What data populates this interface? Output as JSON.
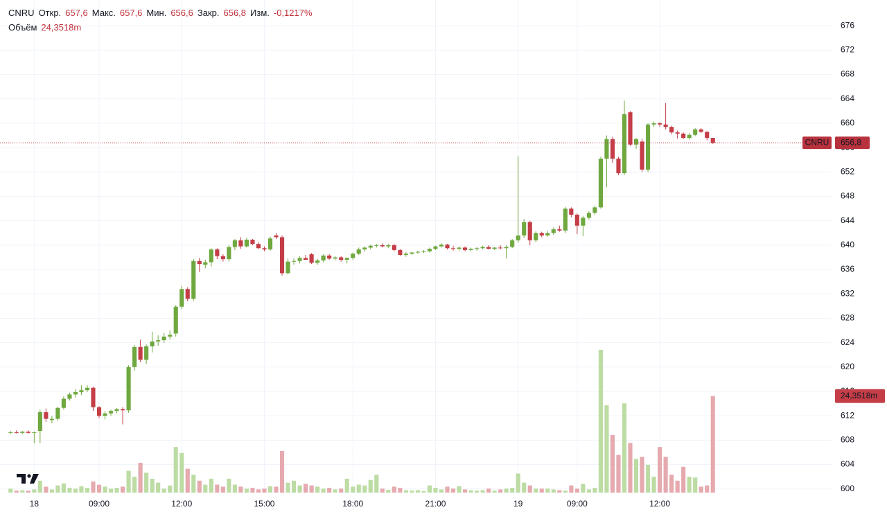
{
  "chart_data": {
    "type": "candlestick",
    "symbol": "CNRU",
    "header_items": [
      {
        "label": "Откр.",
        "value": "657,6"
      },
      {
        "label": "Макс.",
        "value": "657,6"
      },
      {
        "label": "Мин.",
        "value": "656,6"
      },
      {
        "label": "Закр.",
        "value": "656,8"
      },
      {
        "label": "Изм.",
        "value": "-0,1217%"
      }
    ],
    "volume_header": {
      "label": "Объём",
      "value": "24,3518m"
    },
    "last_price": {
      "value": 656.8,
      "label": "656,8"
    },
    "last_volume": {
      "value": 24.3518,
      "label": "24,3518m"
    },
    "categories": [
      null,
      null,
      null,
      null,
      "18",
      null,
      null,
      null,
      null,
      null,
      null,
      null,
      null,
      null,
      null,
      "09:00",
      null,
      null,
      null,
      null,
      null,
      null,
      null,
      null,
      null,
      null,
      null,
      null,
      null,
      "12:00",
      null,
      null,
      null,
      null,
      null,
      null,
      null,
      null,
      null,
      null,
      null,
      null,
      null,
      "15:00",
      null,
      null,
      null,
      null,
      null,
      null,
      null,
      null,
      null,
      null,
      null,
      null,
      null,
      null,
      "18:00",
      null,
      null,
      null,
      null,
      null,
      null,
      null,
      null,
      null,
      null,
      null,
      null,
      null,
      "21:00",
      null,
      null,
      null,
      null,
      null,
      null,
      null,
      null,
      null,
      null,
      null,
      null,
      null,
      "19",
      null,
      null,
      null,
      null,
      null,
      null,
      null,
      null,
      null,
      "09:00",
      null,
      null,
      null,
      null,
      null,
      null,
      null,
      null,
      null,
      null,
      null,
      null,
      null,
      "12:00",
      null,
      null,
      null,
      null,
      null,
      null,
      null,
      null,
      null
    ],
    "open": [
      609.2,
      609.3,
      609.2,
      609.4,
      609.2,
      609.5,
      612.6,
      611.3,
      611.5,
      613.3,
      614.8,
      615.5,
      615.9,
      616.2,
      616.6,
      613.4,
      612,
      612.4,
      612.8,
      613.1,
      612.9,
      620,
      623.3,
      621.2,
      623.4,
      624.2,
      624.4,
      625,
      625.5,
      629.9,
      632.8,
      631.2,
      637.4,
      636.8,
      637.2,
      639.3,
      638.2,
      637.7,
      639.7,
      640.8,
      639.8,
      640.9,
      640.2,
      639.5,
      639.3,
      641.6,
      641.3,
      635.4,
      637.3,
      637.4,
      637.9,
      638.5,
      637.1,
      637.5,
      638.3,
      637.8,
      638,
      637.6,
      637.9,
      638.6,
      639.3,
      639.6,
      639.9,
      640,
      639.8,
      640,
      639.2,
      638.4,
      638.6,
      638.8,
      638.9,
      639,
      639.4,
      639.8,
      640.1,
      639.5,
      639.4,
      639.6,
      639.2,
      639.4,
      639.5,
      639.7,
      639.4,
      639.6,
      639.5,
      639.7,
      640.8,
      641.6,
      643.8,
      640.8,
      642,
      641.6,
      642,
      642.6,
      642.4,
      646,
      645,
      643.2,
      644.5,
      645.3,
      646.2,
      654.2,
      657.4,
      654.2,
      651.8,
      661.8,
      656.5,
      657,
      652.4,
      659.8,
      660,
      659.8,
      659.4,
      658.5,
      658.3,
      657.6,
      658.1,
      659,
      658.6,
      657.6
    ],
    "high": [
      609.5,
      609.6,
      609.5,
      609.6,
      609.4,
      613,
      613.2,
      612,
      613.5,
      615.2,
      615.8,
      616.4,
      617,
      617,
      616.8,
      613.6,
      612.8,
      613,
      613.3,
      613.4,
      620.3,
      623.6,
      624.5,
      623.7,
      625.8,
      625.2,
      625.6,
      626,
      630.2,
      633.3,
      633.1,
      637.7,
      637.9,
      637.6,
      639.5,
      639.5,
      638.5,
      640,
      641,
      641.3,
      641.2,
      641,
      640.5,
      639.8,
      641.4,
      642,
      641.6,
      637.8,
      637.8,
      638.2,
      638.4,
      638.7,
      637.8,
      638.5,
      638.5,
      638.2,
      638.2,
      638,
      638.8,
      639.6,
      639.8,
      640.1,
      640.2,
      640.3,
      640.2,
      640.2,
      639.4,
      638.9,
      638.9,
      639.1,
      639.2,
      639.6,
      639.9,
      640.3,
      640.2,
      639.9,
      639.8,
      639.8,
      639.6,
      639.7,
      639.9,
      640,
      639.7,
      640,
      640,
      641,
      654.6,
      644.3,
      644,
      642.3,
      642.2,
      642.3,
      642.9,
      643.2,
      646.3,
      646.2,
      645.2,
      644.8,
      645.6,
      646.5,
      654.5,
      658,
      657.8,
      654.5,
      663.7,
      662,
      657.6,
      657.5,
      660,
      660.3,
      660.2,
      663.3,
      659.6,
      658.8,
      658.5,
      658.4,
      659.2,
      659.2,
      658.7,
      657.6
    ],
    "low": [
      609,
      609.1,
      609,
      609.1,
      607.5,
      607.5,
      611,
      610.8,
      611.2,
      613,
      614.5,
      615,
      615.4,
      615.9,
      612.8,
      611.6,
      611.4,
      612,
      612.4,
      610.6,
      612.5,
      619.4,
      620.8,
      620.5,
      622.4,
      623.5,
      624,
      624.5,
      625,
      629.5,
      630.8,
      630.9,
      635.6,
      636.2,
      636.5,
      637.7,
      637.3,
      637.3,
      639.2,
      639.4,
      639.6,
      640,
      639.4,
      639,
      639.1,
      641,
      635,
      635.2,
      636.8,
      637,
      637.6,
      636.9,
      636.8,
      637.2,
      637.6,
      637.5,
      637.3,
      637,
      637.6,
      638.4,
      639,
      639.3,
      639.6,
      639.6,
      639.5,
      639,
      638.2,
      638.1,
      638.4,
      638.6,
      638.7,
      638.8,
      639.2,
      639.6,
      639.3,
      639.1,
      639.1,
      639,
      639,
      639.1,
      639.3,
      639.3,
      639.2,
      639.3,
      637.8,
      639.5,
      640.4,
      641.2,
      640,
      640.5,
      641.3,
      641.4,
      641.7,
      642.2,
      642,
      644.6,
      641.8,
      641.5,
      644.2,
      645,
      646,
      649.5,
      653.5,
      651.5,
      651.5,
      656.3,
      655.8,
      652,
      652,
      659.4,
      659.4,
      659,
      658.2,
      657.5,
      657.4,
      657.3,
      657.9,
      658.4,
      657.2,
      656.6
    ],
    "close": [
      609.3,
      609.2,
      609.4,
      609.2,
      609.3,
      612.6,
      611.5,
      611.5,
      613.3,
      614.8,
      615.5,
      615.9,
      616.2,
      616.6,
      613.4,
      612,
      612.4,
      612.8,
      613.1,
      612.9,
      620,
      623.3,
      621.2,
      623.4,
      624.2,
      624.4,
      625,
      625.3,
      629.9,
      632.8,
      631.2,
      637.4,
      636.9,
      637.2,
      639.3,
      638.2,
      637.7,
      639.7,
      640.8,
      639.8,
      640.9,
      640.2,
      639.5,
      639.3,
      641.1,
      641.3,
      635.4,
      637.3,
      637.4,
      637.9,
      637.6,
      637.1,
      637.5,
      638.3,
      637.8,
      638,
      637.6,
      637.9,
      638.6,
      639.3,
      639.6,
      639.9,
      640,
      639.8,
      640,
      639.2,
      638.4,
      638.6,
      638.8,
      638.9,
      639,
      639.4,
      639.8,
      640.1,
      639.5,
      639.4,
      639.6,
      639.2,
      639.4,
      639.5,
      639.7,
      639.4,
      639.6,
      639.5,
      639.7,
      640.8,
      641.6,
      643.8,
      640.8,
      642,
      641.6,
      642,
      642.6,
      642.4,
      646,
      645,
      643.2,
      644.5,
      645.3,
      646.2,
      654.2,
      657.4,
      654.2,
      651.8,
      661.5,
      656.5,
      657.4,
      652.4,
      659.8,
      660,
      659.8,
      659.4,
      658.5,
      658.3,
      657.6,
      658.1,
      659,
      658.6,
      657.6,
      656.8
    ],
    "volume": [
      1,
      0.5,
      0.6,
      0.5,
      0.8,
      3,
      1.5,
      0.8,
      1.8,
      2.3,
      1.2,
      1,
      1.6,
      1.2,
      2.8,
      2,
      1.5,
      1,
      1.2,
      1.5,
      5.5,
      4,
      7.5,
      5,
      3.5,
      2.5,
      1,
      1.8,
      11.5,
      10,
      6,
      4.5,
      3,
      2,
      3.5,
      2,
      1.5,
      3.5,
      2,
      1.5,
      1,
      1.2,
      0.8,
      1,
      1.6,
      1.5,
      10.5,
      2.5,
      3,
      1.8,
      2.2,
      1.8,
      1.5,
      1,
      1.2,
      0.8,
      1,
      3.5,
      1.5,
      2,
      1.8,
      3.2,
      4.5,
      1,
      0.7,
      1.5,
      1.2,
      0.6,
      0.5,
      0.6,
      0.4,
      1.8,
      1.2,
      0.8,
      1.5,
      1,
      1.6,
      0.8,
      0.6,
      0.5,
      0.6,
      1,
      0.5,
      0.8,
      1,
      1.2,
      4.8,
      2.5,
      1.8,
      1,
      1,
      1,
      0.8,
      0.6,
      0.5,
      1.8,
      1,
      2.2,
      0.8,
      1.2,
      36,
      22,
      14.5,
      9.5,
      22.5,
      12.5,
      8.5,
      9,
      7,
      4,
      11.5,
      9,
      4.5,
      3,
      6.5,
      4,
      3.8,
      1.5,
      1.8,
      24.3518
    ],
    "ylim": [
      599.4,
      677.5
    ],
    "yticks": [
      600,
      604,
      608,
      612,
      616,
      620,
      624,
      628,
      632,
      636,
      640,
      644,
      648,
      652,
      656,
      660,
      664,
      668,
      672,
      676
    ],
    "y2lim": [
      0,
      120
    ],
    "grid": true,
    "up_color": "#6fa83f",
    "down_color": "#c43d47",
    "volume_up_color": "#bcdca3",
    "volume_down_color": "#e5a9ae"
  }
}
